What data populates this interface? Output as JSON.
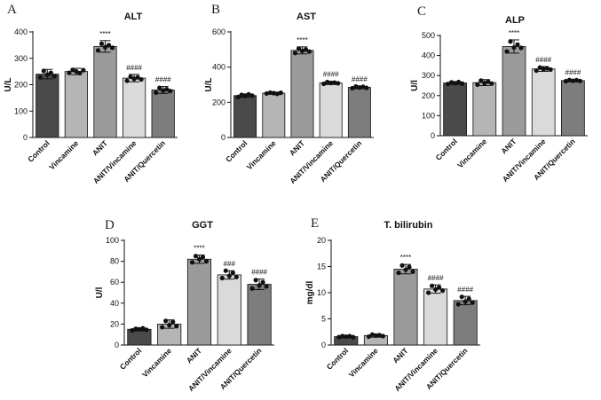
{
  "chart_data": [
    {
      "type": "bar",
      "panel_label": "A",
      "title": "ALT",
      "ylabel": "U/L",
      "xlabel": "",
      "ylim": [
        0,
        400
      ],
      "yticks": [
        0,
        100,
        200,
        300,
        400
      ],
      "categories": [
        "Control",
        "Vincamine",
        "ANIT",
        "ANIT/Vincamine",
        "ANIT/Quercetin"
      ],
      "values": [
        240,
        250,
        345,
        225,
        180
      ],
      "errors": [
        18,
        12,
        22,
        14,
        13
      ],
      "points": [
        [
          228,
          252,
          238,
          245,
          232
        ],
        [
          245,
          256,
          250,
          244,
          255
        ],
        [
          330,
          355,
          342,
          350,
          340
        ],
        [
          215,
          230,
          222,
          228,
          220
        ],
        [
          170,
          188,
          178,
          183,
          176
        ]
      ],
      "annotations": [
        "",
        "",
        "****",
        "####",
        "####"
      ]
    },
    {
      "type": "bar",
      "panel_label": "B",
      "title": "AST",
      "ylabel": "U/L",
      "xlabel": "",
      "ylim": [
        0,
        600
      ],
      "yticks": [
        0,
        200,
        400,
        600
      ],
      "categories": [
        "Control",
        "Vincamine",
        "ANIT",
        "ANIT/Vincamine",
        "ANIT/Quercetin"
      ],
      "values": [
        238,
        252,
        495,
        310,
        285
      ],
      "errors": [
        10,
        6,
        20,
        9,
        8
      ],
      "points": [
        [
          230,
          242,
          236,
          245,
          238
        ],
        [
          250,
          255,
          252,
          248,
          254
        ],
        [
          480,
          505,
          492,
          500,
          488
        ],
        [
          305,
          315,
          310,
          312,
          308
        ],
        [
          280,
          290,
          284,
          288,
          282
        ]
      ],
      "annotations": [
        "",
        "",
        "****",
        "####",
        "####"
      ]
    },
    {
      "type": "bar",
      "panel_label": "C",
      "title": "ALP",
      "ylabel": "U/l",
      "xlabel": "",
      "ylim": [
        0,
        500
      ],
      "yticks": [
        0,
        100,
        200,
        300,
        400,
        500
      ],
      "categories": [
        "Control",
        "Vincamine",
        "ANIT",
        "ANIT/Vincamine",
        "ANIT/Quercetin"
      ],
      "values": [
        263,
        265,
        445,
        333,
        275
      ],
      "errors": [
        7,
        15,
        33,
        12,
        6
      ],
      "points": [
        [
          258,
          266,
          262,
          268,
          260
        ],
        [
          255,
          275,
          262,
          270,
          260
        ],
        [
          420,
          470,
          440,
          455,
          438
        ],
        [
          325,
          340,
          332,
          336,
          330
        ],
        [
          272,
          278,
          274,
          277,
          273
        ]
      ],
      "annotations": [
        "",
        "",
        "****",
        "####",
        "####"
      ]
    },
    {
      "type": "bar",
      "panel_label": "D",
      "title": "GGT",
      "ylabel": "U/l",
      "xlabel": "",
      "ylim": [
        0,
        100
      ],
      "yticks": [
        0,
        20,
        40,
        60,
        80,
        100
      ],
      "categories": [
        "Control",
        "Vincamine",
        "ANIT",
        "ANIT/Vincamine",
        "ANIT/Quercetin"
      ],
      "values": [
        15,
        20,
        82,
        67,
        58
      ],
      "errors": [
        1.5,
        4,
        4,
        4,
        5
      ],
      "points": [
        [
          14,
          15.5,
          15,
          16,
          14.5
        ],
        [
          17,
          23,
          19,
          22,
          18
        ],
        [
          79,
          85,
          82,
          84,
          80
        ],
        [
          64,
          71,
          66,
          69,
          65
        ],
        [
          54,
          62,
          57,
          60,
          56
        ]
      ],
      "annotations": [
        "",
        "",
        "****",
        "###",
        "####"
      ]
    },
    {
      "type": "bar",
      "panel_label": "E",
      "title": "T. bilirubin",
      "ylabel": "mg/dl",
      "xlabel": "",
      "ylim": [
        0,
        20
      ],
      "yticks": [
        0,
        5,
        10,
        15,
        20
      ],
      "categories": [
        "Control",
        "Vincamine",
        "ANIT",
        "ANIT/Vincamine",
        "ANIT/Quercetin"
      ],
      "values": [
        1.6,
        1.8,
        14.5,
        10.7,
        8.5
      ],
      "errors": [
        0.2,
        0.3,
        0.9,
        0.8,
        0.8
      ],
      "points": [
        [
          1.5,
          1.7,
          1.6,
          1.7,
          1.5
        ],
        [
          1.6,
          2.0,
          1.8,
          1.9,
          1.7
        ],
        [
          13.8,
          15.2,
          14.4,
          14.9,
          14.0
        ],
        [
          10.0,
          11.3,
          10.6,
          11.0,
          10.4
        ],
        [
          7.8,
          9.2,
          8.3,
          8.8,
          8.1
        ]
      ],
      "annotations": [
        "",
        "",
        "****",
        "####",
        "####"
      ]
    }
  ],
  "colors": {
    "bars": [
      "#4a4a4a",
      "#b5b5b5",
      "#9b9b9b",
      "#dadada",
      "#7d7d7d"
    ],
    "axis": "#111111",
    "points": "#111111"
  }
}
